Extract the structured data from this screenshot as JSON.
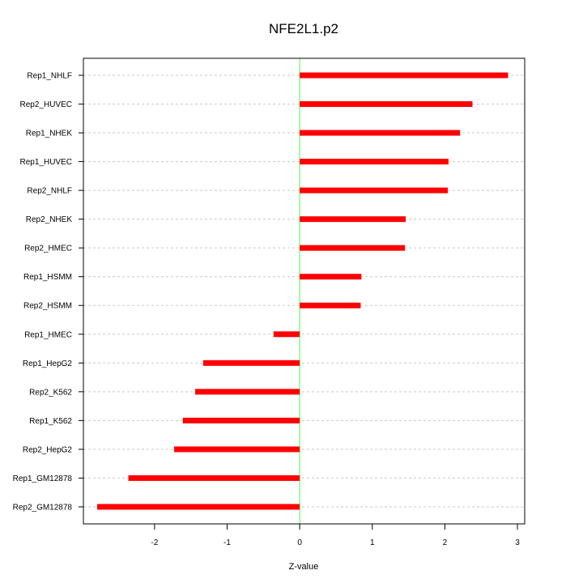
{
  "chart_data": {
    "type": "bar",
    "orientation": "horizontal",
    "title": "NFE2L1.p2",
    "xlabel": "Z-value",
    "ylabel": "",
    "xlim": [
      -2.98,
      3.1
    ],
    "xticks": [
      "-2",
      "-1",
      "0",
      "1",
      "2",
      "3"
    ],
    "xtick_values": [
      -2,
      -1,
      0,
      1,
      2,
      3
    ],
    "grid": true,
    "reference_line": 0,
    "bar_color": "#ff0000",
    "reference_line_color": "#66ff66",
    "categories": [
      "Rep1_NHLF",
      "Rep2_HUVEC",
      "Rep1_NHEK",
      "Rep1_HUVEC",
      "Rep2_NHLF",
      "Rep2_NHEK",
      "Rep2_HMEC",
      "Rep1_HSMM",
      "Rep2_HSMM",
      "Rep1_HMEC",
      "Rep1_HepG2",
      "Rep2_K562",
      "Rep1_K562",
      "Rep2_HepG2",
      "Rep1_GM12878",
      "Rep2_GM12878"
    ],
    "values": [
      2.87,
      2.38,
      2.21,
      2.05,
      2.04,
      1.46,
      1.45,
      0.85,
      0.84,
      -0.36,
      -1.33,
      -1.44,
      -1.61,
      -1.73,
      -2.36,
      -2.79
    ]
  }
}
